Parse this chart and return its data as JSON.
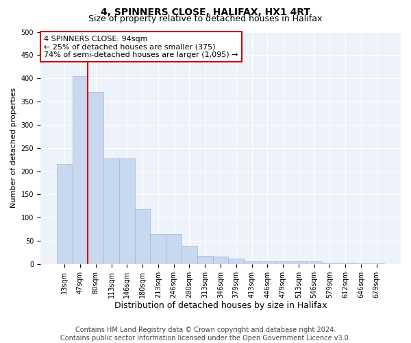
{
  "title": "4, SPINNERS CLOSE, HALIFAX, HX1 4RT",
  "subtitle": "Size of property relative to detached houses in Halifax",
  "xlabel": "Distribution of detached houses by size in Halifax",
  "ylabel": "Number of detached properties",
  "bar_color": "#c8d8ee",
  "bar_edge_color": "#a0b8d8",
  "background_color": "#eef2fa",
  "grid_color": "#ffffff",
  "categories": [
    "13sqm",
    "47sqm",
    "80sqm",
    "113sqm",
    "146sqm",
    "180sqm",
    "213sqm",
    "246sqm",
    "280sqm",
    "313sqm",
    "346sqm",
    "379sqm",
    "413sqm",
    "446sqm",
    "479sqm",
    "513sqm",
    "546sqm",
    "579sqm",
    "612sqm",
    "646sqm",
    "679sqm"
  ],
  "values": [
    215,
    405,
    370,
    228,
    228,
    118,
    65,
    65,
    38,
    18,
    16,
    12,
    6,
    6,
    5,
    5,
    6,
    2,
    2,
    1,
    1
  ],
  "ylim": [
    0,
    500
  ],
  "yticks": [
    0,
    50,
    100,
    150,
    200,
    250,
    300,
    350,
    400,
    450,
    500
  ],
  "vline_x_index": 2,
  "vline_color": "#cc0000",
  "annotation_text": "4 SPINNERS CLOSE: 94sqm\n← 25% of detached houses are smaller (375)\n74% of semi-detached houses are larger (1,095) →",
  "footer_line1": "Contains HM Land Registry data © Crown copyright and database right 2024.",
  "footer_line2": "Contains public sector information licensed under the Open Government Licence v3.0.",
  "title_fontsize": 10,
  "subtitle_fontsize": 9,
  "annotation_fontsize": 8,
  "tick_fontsize": 7,
  "ylabel_fontsize": 8,
  "xlabel_fontsize": 9,
  "footer_fontsize": 7
}
